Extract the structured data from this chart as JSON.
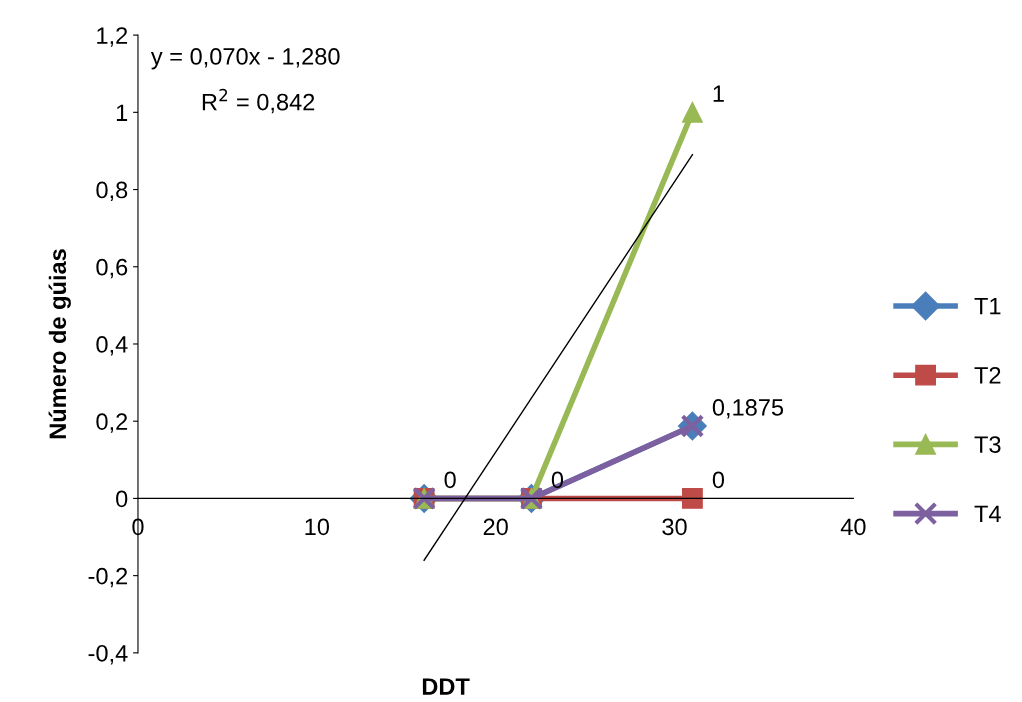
{
  "chart_data": {
    "type": "line",
    "xlabel": "DDT",
    "ylabel": "Número de gúias",
    "x": [
      16,
      22,
      31
    ],
    "series": [
      {
        "name": "T1",
        "color": "#4a7ebb",
        "marker": "diamond",
        "values": [
          0,
          0,
          0.1875
        ]
      },
      {
        "name": "T2",
        "color": "#be4b48",
        "marker": "square",
        "values": [
          0,
          0,
          0
        ],
        "value_labels": [
          "0",
          "0",
          "0"
        ]
      },
      {
        "name": "T3",
        "color": "#98b954",
        "marker": "triangle",
        "values": [
          0,
          0,
          1
        ],
        "value_labels": [
          null,
          null,
          "1"
        ]
      },
      {
        "name": "T4",
        "color": "#7d60a0",
        "marker": "cross",
        "values": [
          0,
          0,
          0.1875
        ],
        "value_labels": [
          null,
          null,
          "0,1875"
        ]
      },
      {
        "type": "line",
        "color": "#000000",
        "marker": "none",
        "x": [
          16,
          31
        ],
        "values": [
          -0.16,
          0.89
        ]
      }
    ],
    "annotations": [
      "y = 0,070x - 1,280",
      "R$^{2}$ = 0,842"
    ],
    "xlim": [
      0,
      40
    ],
    "xticks": [
      0,
      10,
      20,
      30,
      40
    ],
    "ylim": [
      -0.4,
      1.2
    ],
    "yticks": [
      {
        "value": -0.4,
        "label": "-0,4"
      },
      {
        "value": -0.2,
        "label": "-0,2"
      },
      0,
      {
        "value": 0.2,
        "label": "0,2"
      },
      {
        "value": 0.4,
        "label": "0,4"
      },
      {
        "value": 0.6,
        "label": "0,6"
      },
      {
        "value": 0.8,
        "label": "0,8"
      },
      1,
      {
        "value": 1.2,
        "label": "1,2"
      }
    ],
    "grid": false,
    "legend": "right"
  }
}
